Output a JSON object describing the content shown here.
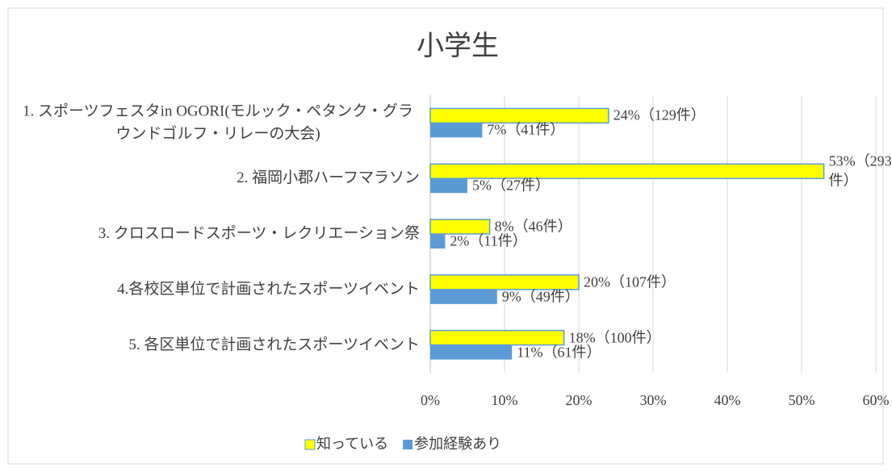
{
  "chart_data": {
    "type": "hbar",
    "title": "小学生",
    "categories": [
      "1. スポーツフェスタin OGORI(モルック・ペタンク・グラウンドゴルフ・リレーの大会)",
      "2. 福岡小郡ハーフマラソン",
      "3. クロスロードスポーツ・レクリエーション祭",
      "4.各校区単位で計画されたスポーツイベント",
      "5. 各区単位で計画されたスポーツイベント"
    ],
    "series": [
      {
        "name": "知っている",
        "color": "#ffff00",
        "values": [
          24,
          53,
          8,
          20,
          18
        ],
        "value_labels": [
          "24%（129件）",
          "53%（293件）",
          "8%（46件）",
          "20%（107件）",
          "18%（100件）"
        ]
      },
      {
        "name": "参加経験あり",
        "color": "#5b9bd5",
        "values": [
          7,
          5,
          2,
          9,
          11
        ],
        "value_labels": [
          "7%（41件）",
          "5%（27件）",
          "2%（11件）",
          "9%（49件）",
          "11%（61件）"
        ]
      }
    ],
    "xlim": [
      0,
      60
    ],
    "xticks": [
      {
        "value": 0,
        "label": "0%"
      },
      {
        "value": 10,
        "label": "10%"
      },
      {
        "value": 20,
        "label": "20%"
      },
      {
        "value": 30,
        "label": "30%"
      },
      {
        "value": 40,
        "label": "40%"
      },
      {
        "value": 50,
        "label": "50%"
      },
      {
        "value": 60,
        "label": "60%"
      }
    ],
    "grid": true,
    "legend": "bottom"
  }
}
